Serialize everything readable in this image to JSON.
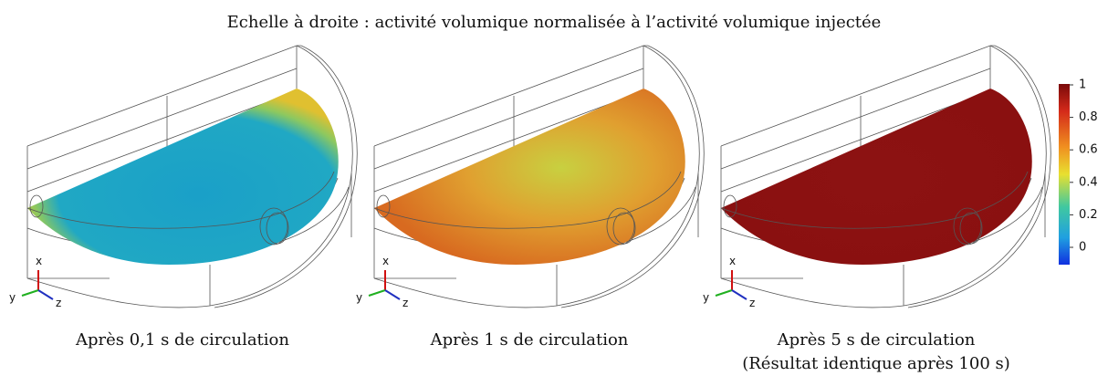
{
  "title": "Echelle à droite : activité volumique normalisée à l’activité volumique injectée",
  "panels": [
    {
      "caption": "Après 0,1 s de circulation"
    },
    {
      "caption": "Après 1 s de circulation"
    },
    {
      "caption": "Après 5 s de circulation",
      "note": "(Résultat identique après 100 s)"
    }
  ],
  "axes": {
    "x": "x",
    "y": "y",
    "z": "z"
  },
  "colorbar": {
    "ticks": [
      1,
      0.8,
      0.6,
      0.4,
      0.2,
      0
    ]
  }
}
